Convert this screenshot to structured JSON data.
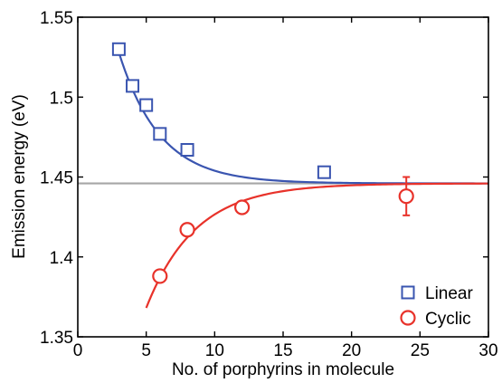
{
  "chart_data": {
    "type": "scatter",
    "title": "",
    "xlabel": "No. of porphyrins in molecule",
    "ylabel": "Emission energy (eV)",
    "xlim": [
      0,
      30
    ],
    "ylim": [
      1.35,
      1.55
    ],
    "x_ticks": [
      0,
      5,
      10,
      15,
      20,
      25,
      30
    ],
    "y_ticks": [
      1.35,
      1.4,
      1.45,
      1.5,
      1.55
    ],
    "x_tick_labels": [
      "0",
      "5",
      "10",
      "15",
      "20",
      "25",
      "30"
    ],
    "y_tick_labels": [
      "1.35",
      "1.4",
      "1.45",
      "1.5",
      "1.55"
    ],
    "grid": false,
    "legend_position": "bottom-right",
    "reference_line": {
      "y": 1.446,
      "color": "#a6a6a6"
    },
    "series": [
      {
        "name": "Linear",
        "marker": "square",
        "color": "#3a55b0",
        "x": [
          3,
          4,
          5,
          6,
          8,
          18
        ],
        "y": [
          1.53,
          1.507,
          1.495,
          1.477,
          1.467,
          1.453
        ],
        "fit": {
          "model": "exponential",
          "asymptote": 1.446,
          "x0": 3,
          "y0": 1.528,
          "decay": 3.0,
          "x_start": 3,
          "x_end": 30
        }
      },
      {
        "name": "Cyclic",
        "marker": "circle",
        "color": "#e8322a",
        "x": [
          6,
          8,
          12,
          24
        ],
        "y": [
          1.388,
          1.417,
          1.431,
          1.438
        ],
        "error": [
          null,
          null,
          null,
          0.012
        ],
        "fit": {
          "model": "exponential",
          "asymptote": 1.446,
          "x0": 6,
          "y0": 1.387,
          "decay": 3.6,
          "x_start": 5,
          "x_end": 30
        }
      }
    ]
  }
}
